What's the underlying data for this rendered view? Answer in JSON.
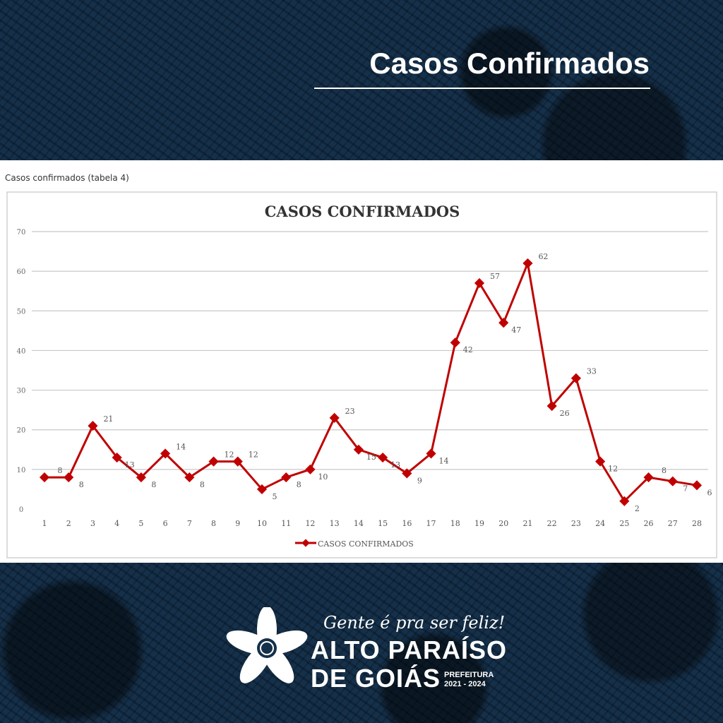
{
  "header": {
    "title": "Casos Confirmados"
  },
  "panel": {
    "caption": "Casos confirmados (tabela 4)"
  },
  "chart_data": {
    "type": "line",
    "title": "CASOS CONFIRMADOS",
    "xlabel": "",
    "ylabel": "",
    "x": [
      1,
      2,
      3,
      4,
      5,
      6,
      7,
      8,
      9,
      10,
      11,
      12,
      13,
      14,
      15,
      16,
      17,
      18,
      19,
      20,
      21,
      22,
      23,
      24,
      25,
      26,
      27,
      28
    ],
    "series": [
      {
        "name": "CASOS CONFIRMADOS",
        "values": [
          8,
          8,
          21,
          13,
          8,
          14,
          8,
          12,
          12,
          5,
          8,
          10,
          23,
          15,
          13,
          9,
          14,
          42,
          57,
          47,
          62,
          26,
          33,
          12,
          2,
          8,
          7,
          6
        ],
        "color": "#c00000"
      }
    ],
    "ylim": [
      0,
      70
    ],
    "yticks": [
      0,
      10,
      20,
      30,
      40,
      50,
      60,
      70
    ],
    "grid": true,
    "legend": "bottom",
    "data_labels": true
  },
  "footer": {
    "slogan": "Gente é pra ser feliz!",
    "line1": "ALTO PARAÍSO",
    "line2": "DE GOIÁS",
    "pref": "PREFEITURA",
    "term": "2021 - 2024"
  }
}
